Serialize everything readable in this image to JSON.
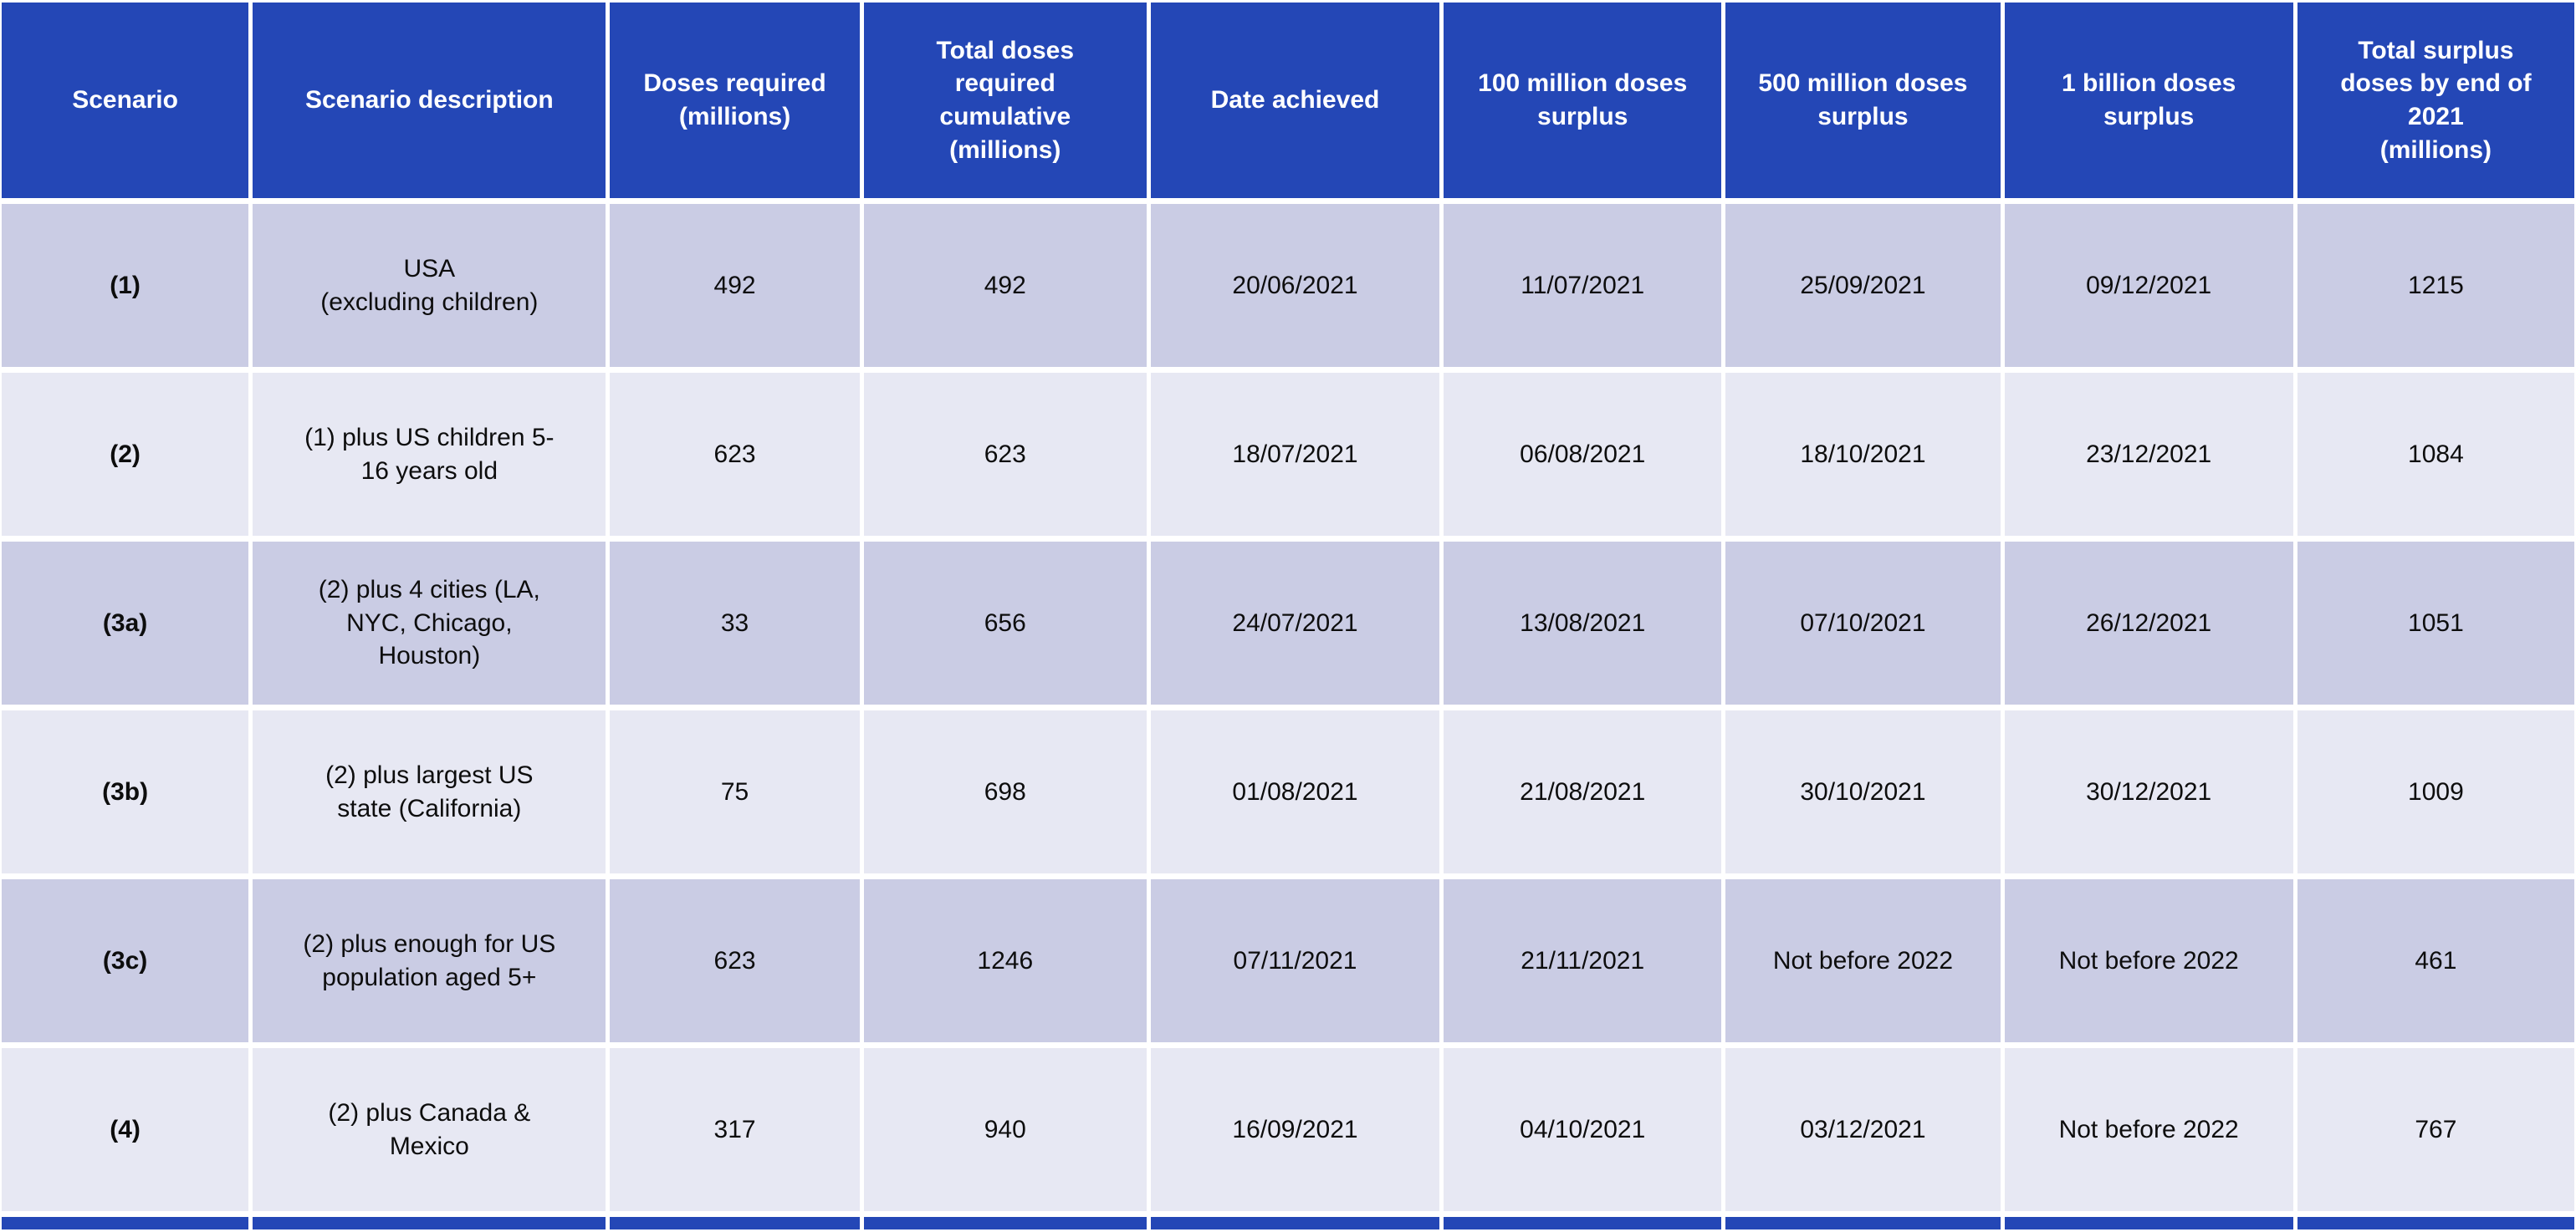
{
  "title": "Vaccine dose scenarios table",
  "colors": {
    "header_bg": "#2447B6",
    "header_text": "#FFFFFF",
    "row_dark_bg": "#CACCE4",
    "row_light_bg": "#E7E8F3",
    "body_text": "#0D0D0D",
    "gutter": "#FFFFFF"
  },
  "table": {
    "headers": [
      "Scenario",
      "Scenario description",
      "Doses required\n(millions)",
      "Total doses\nrequired\ncumulative\n(millions)",
      "Date achieved",
      "100 million doses\nsurplus",
      "500 million doses\nsurplus",
      "1 billion doses\nsurplus",
      "Total surplus\ndoses by end of\n2021\n(millions)"
    ],
    "rows": [
      [
        "(1)",
        "USA\n(excluding children)",
        "492",
        "492",
        "20/06/2021",
        "11/07/2021",
        "25/09/2021",
        "09/12/2021",
        "1215"
      ],
      [
        "(2)",
        "(1) plus US children 5-\n16 years old",
        "623",
        "623",
        "18/07/2021",
        "06/08/2021",
        "18/10/2021",
        "23/12/2021",
        "1084"
      ],
      [
        "(3a)",
        "(2) plus 4 cities (LA,\nNYC, Chicago,\nHouston)",
        "33",
        "656",
        "24/07/2021",
        "13/08/2021",
        "07/10/2021",
        "26/12/2021",
        "1051"
      ],
      [
        "(3b)",
        "(2) plus largest US\nstate (California)",
        "75",
        "698",
        "01/08/2021",
        "21/08/2021",
        "30/10/2021",
        "30/12/2021",
        "1009"
      ],
      [
        "(3c)",
        "(2) plus enough for US\npopulation aged 5+",
        "623",
        "1246",
        "07/11/2021",
        "21/11/2021",
        "Not before 2022",
        "Not before 2022",
        "461"
      ],
      [
        "(4)",
        "(2) plus Canada &\nMexico",
        "317",
        "940",
        "16/09/2021",
        "04/10/2021",
        "03/12/2021",
        "Not before 2022",
        "767"
      ]
    ]
  },
  "chart_data": {
    "type": "table",
    "columns": [
      "Scenario",
      "Scenario description",
      "Doses required (millions)",
      "Total doses required cumulative (millions)",
      "Date achieved",
      "100 million doses surplus",
      "500 million doses surplus",
      "1 billion doses surplus",
      "Total surplus doses by end of 2021 (millions)"
    ],
    "rows": [
      [
        "(1)",
        "USA (excluding children)",
        492,
        492,
        "20/06/2021",
        "11/07/2021",
        "25/09/2021",
        "09/12/2021",
        1215
      ],
      [
        "(2)",
        "(1) plus US children 5-16 years old",
        623,
        623,
        "18/07/2021",
        "06/08/2021",
        "18/10/2021",
        "23/12/2021",
        1084
      ],
      [
        "(3a)",
        "(2) plus 4 cities (LA, NYC, Chicago, Houston)",
        33,
        656,
        "24/07/2021",
        "13/08/2021",
        "07/10/2021",
        "26/12/2021",
        1051
      ],
      [
        "(3b)",
        "(2) plus largest US state (California)",
        75,
        698,
        "01/08/2021",
        "21/08/2021",
        "30/10/2021",
        "30/12/2021",
        1009
      ],
      [
        "(3c)",
        "(2) plus enough for US population aged 5+",
        623,
        1246,
        "07/11/2021",
        "21/11/2021",
        "Not before 2022",
        "Not before 2022",
        461
      ],
      [
        "(4)",
        "(2) plus Canada & Mexico",
        317,
        940,
        "16/09/2021",
        "04/10/2021",
        "03/12/2021",
        "Not before 2022",
        767
      ]
    ],
    "title": "Vaccine doses required and surplus dates by scenario",
    "layout": {
      "header_row": true,
      "banded_rows": true,
      "legend": "none",
      "grid": "white gutters between cells"
    }
  }
}
